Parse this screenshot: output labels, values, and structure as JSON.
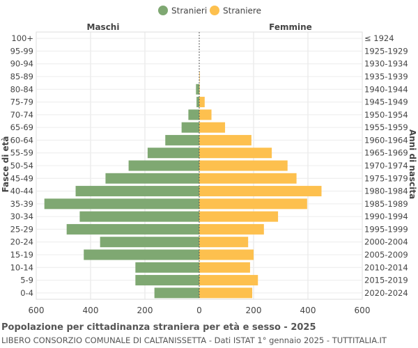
{
  "chart_data": {
    "type": "bar",
    "orientation": "horizontal-population-pyramid",
    "left_header": "Maschi",
    "right_header": "Femmine",
    "ylabel_left": "Fasce di età",
    "ylabel_right": "Anni di nascita",
    "x_ticks": [
      "600",
      "400",
      "200",
      "0",
      "200",
      "400",
      "600"
    ],
    "xlim": [
      -600,
      600
    ],
    "grid": true,
    "legend_position": "top-center",
    "age_groups": [
      "100+",
      "95-99",
      "90-94",
      "85-89",
      "80-84",
      "75-79",
      "70-74",
      "65-69",
      "60-64",
      "55-59",
      "50-54",
      "45-49",
      "40-44",
      "35-39",
      "30-34",
      "25-29",
      "20-24",
      "15-19",
      "10-14",
      "5-9",
      "0-4"
    ],
    "birth_years": [
      "≤ 1924",
      "1925-1929",
      "1930-1934",
      "1935-1939",
      "1940-1944",
      "1945-1949",
      "1950-1954",
      "1955-1959",
      "1960-1964",
      "1965-1969",
      "1970-1974",
      "1975-1979",
      "1980-1984",
      "1985-1989",
      "1990-1994",
      "1995-1999",
      "2000-2004",
      "2005-2009",
      "2010-2014",
      "2015-2019",
      "2020-2024"
    ],
    "series": [
      {
        "name": "Stranieri",
        "color": "#7fa872",
        "values": [
          0,
          0,
          0,
          0,
          12,
          10,
          40,
          65,
          125,
          190,
          260,
          345,
          455,
          570,
          440,
          488,
          365,
          425,
          235,
          235,
          165
        ]
      },
      {
        "name": "Straniere",
        "color": "#fdc04e",
        "values": [
          0,
          0,
          0,
          2,
          2,
          20,
          45,
          95,
          192,
          267,
          325,
          358,
          450,
          397,
          290,
          238,
          180,
          200,
          187,
          216,
          195
        ]
      }
    ]
  },
  "footer": {
    "title": "Popolazione per cittadinanza straniera per età e sesso - 2025",
    "subtitle": "LIBERO CONSORZIO COMUNALE DI CALTANISSETTA - Dati ISTAT 1° gennaio 2025 - TUTTITALIA.IT"
  }
}
